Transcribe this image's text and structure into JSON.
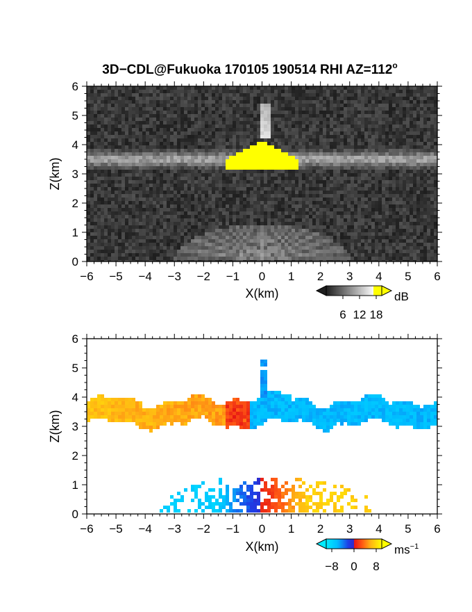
{
  "title": "3D−CDL@Fukuoka 170105 190514 RHI AZ=112",
  "title_sup": "o",
  "chart_data": [
    {
      "type": "heatmap",
      "quantity": "backscatter",
      "xlabel": "X(km)",
      "ylabel": "Z(km)",
      "xlim": [
        -6,
        6
      ],
      "ylim": [
        0,
        6
      ],
      "x_ticks": [
        -6,
        -5,
        -4,
        -3,
        -2,
        -1,
        0,
        1,
        2,
        3,
        4,
        5,
        6
      ],
      "y_ticks": [
        0,
        1,
        2,
        3,
        4,
        5,
        6
      ],
      "background": "noise",
      "colorbar": {
        "unit": "dB",
        "ticks": [
          6,
          12,
          18
        ],
        "range": [
          0,
          20
        ],
        "colormap": "grayscale-to-yellow"
      },
      "features": [
        {
          "kind": "layer",
          "x_range": [
            -6,
            6
          ],
          "z_range": [
            3.1,
            3.9
          ],
          "intensity": 10
        },
        {
          "kind": "core",
          "x_range": [
            -1.2,
            1.2
          ],
          "z_range": [
            3.2,
            4.2
          ],
          "intensity": 20
        },
        {
          "kind": "plume",
          "x_range": [
            -0.1,
            0.25
          ],
          "z_range": [
            4.2,
            5.4
          ],
          "intensity": 14
        },
        {
          "kind": "fan",
          "x_range": [
            -3.2,
            3.2
          ],
          "z_range": [
            0,
            1.5
          ],
          "intensity": 9
        }
      ]
    },
    {
      "type": "heatmap",
      "quantity": "radial_velocity",
      "xlabel": "X(km)",
      "ylabel": "Z(km)",
      "xlim": [
        -6,
        6
      ],
      "ylim": [
        0,
        6
      ],
      "x_ticks": [
        -6,
        -5,
        -4,
        -3,
        -2,
        -1,
        0,
        1,
        2,
        3,
        4,
        5,
        6
      ],
      "y_ticks": [
        0,
        1,
        2,
        3,
        4,
        5,
        6
      ],
      "colorbar": {
        "unit": "ms",
        "unit_sup": "−1",
        "ticks": [
          "−8",
          "0",
          "8"
        ],
        "range": [
          -10,
          10
        ],
        "colormap": "cyan-blue-red-yellow"
      },
      "features": [
        {
          "kind": "layer",
          "x_range": [
            -6,
            6
          ],
          "z_range": [
            2.9,
            4.0
          ],
          "velocity_left": 5,
          "velocity_right": -6
        },
        {
          "kind": "plume",
          "x_range": [
            -0.1,
            0.2
          ],
          "z_range": [
            4.0,
            5.3
          ],
          "velocity": -5
        },
        {
          "kind": "fan",
          "x_range": [
            -3.5,
            4.6
          ],
          "z_range": [
            0,
            1.4
          ],
          "velocity_left": -7,
          "velocity_right": 7
        }
      ]
    }
  ]
}
